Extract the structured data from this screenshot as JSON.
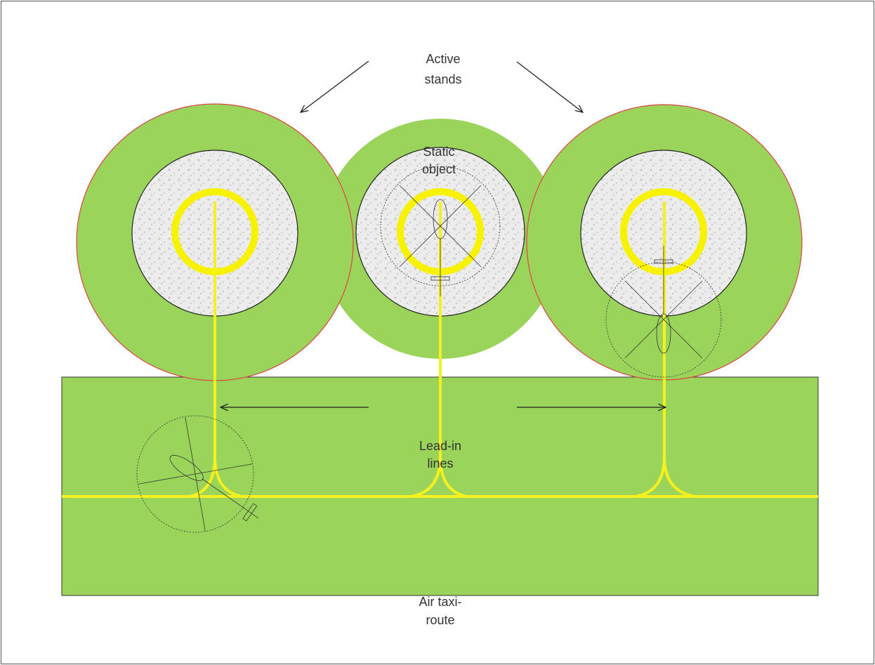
{
  "labels": [
    {
      "lines": [
        "Active",
        "stands"
      ]
    },
    {
      "lines": [
        "Static",
        "object"
      ]
    },
    {
      "lines": [
        "Lead-in",
        "lines"
      ]
    },
    {
      "lines": [
        "Air taxi-",
        "route"
      ]
    }
  ]
}
